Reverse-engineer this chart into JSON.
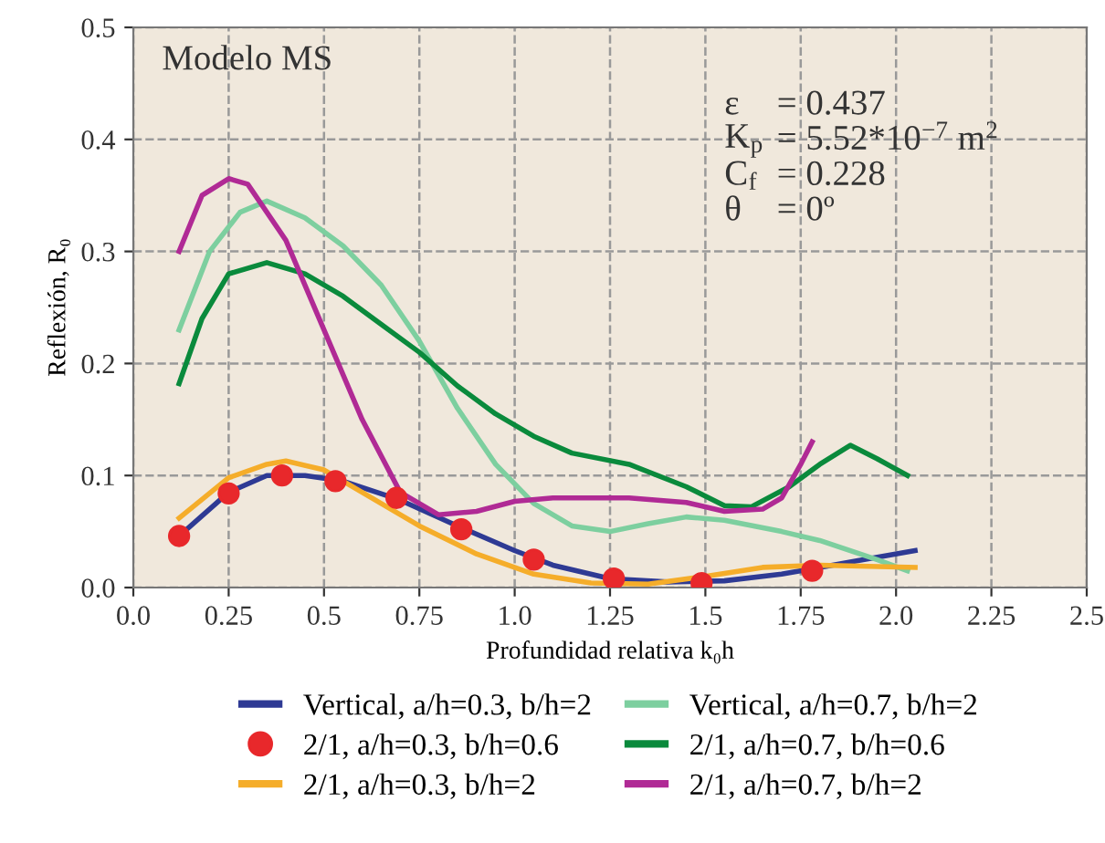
{
  "chart_data": {
    "type": "line",
    "xlabel": "Profundidad relativa k₀h",
    "ylabel": "Reflexión, R₀",
    "annotations": [
      "Modelo MS",
      "ε",
      "= 0.437",
      "K$_{p}$",
      "= 5.52*10$^{−7}$ m$^{2}$",
      "C$_{f}$",
      "= 0.228",
      "θ",
      "= 0º"
    ],
    "xlim": [
      0.0,
      2.5
    ],
    "xticks": [
      {
        "value": 0,
        "label": "0.0"
      },
      0.25,
      0.5,
      0.75,
      {
        "value": 1,
        "label": "1.0"
      },
      1.25,
      1.5,
      1.75,
      {
        "value": 2,
        "label": "2.0"
      },
      2.25,
      2.5
    ],
    "ylim": [
      0.0,
      0.5
    ],
    "yticks": [
      {
        "value": 0,
        "label": "0.0"
      },
      0.1,
      0.2,
      0.3,
      0.4,
      0.5
    ],
    "grid": true,
    "legend": "bottom",
    "line_style": "solid",
    "series": [
      {
        "name": "Vertical, a/h=0.3, b/h=2",
        "color": "#2e3a94",
        "x": [
          0.12,
          0.25,
          0.35,
          0.45,
          0.55,
          0.7,
          0.85,
          1.0,
          1.1,
          1.25,
          1.4,
          1.55,
          1.7,
          1.8,
          1.9,
          2.05
        ],
        "values": [
          0.046,
          0.085,
          0.1,
          0.1,
          0.095,
          0.078,
          0.055,
          0.033,
          0.02,
          0.008,
          0.005,
          0.006,
          0.012,
          0.018,
          0.024,
          0.033
        ]
      },
      {
        "name": "Vertical, a/h=0.7, b/h=2",
        "color": "#7dcf9f",
        "x": [
          0.12,
          0.2,
          0.28,
          0.35,
          0.45,
          0.55,
          0.65,
          0.75,
          0.85,
          0.95,
          1.05,
          1.15,
          1.25,
          1.35,
          1.45,
          1.55,
          1.7,
          1.8,
          1.95,
          2.03
        ],
        "values": [
          0.23,
          0.3,
          0.335,
          0.345,
          0.33,
          0.305,
          0.27,
          0.22,
          0.16,
          0.11,
          0.075,
          0.055,
          0.05,
          0.057,
          0.063,
          0.06,
          0.05,
          0.042,
          0.025,
          0.015
        ]
      },
      {
        "name": "2/1, a/h=0.3, b/h=0.6",
        "type": "scatter",
        "marker": "circle",
        "color": "#e8282b",
        "x": [
          0.12,
          0.25,
          0.39,
          0.53,
          0.69,
          0.86,
          1.05,
          1.26,
          1.49,
          1.78
        ],
        "values": [
          0.046,
          0.084,
          0.1,
          0.095,
          0.08,
          0.052,
          0.025,
          0.008,
          0.004,
          0.015
        ]
      },
      {
        "name": "2/1, a/h=0.7, b/h=0.6",
        "color": "#0a8a3c",
        "x": [
          0.12,
          0.18,
          0.25,
          0.35,
          0.45,
          0.55,
          0.65,
          0.75,
          0.85,
          0.95,
          1.05,
          1.15,
          1.3,
          1.45,
          1.55,
          1.62,
          1.72,
          1.8,
          1.88,
          1.95,
          2.03
        ],
        "values": [
          0.182,
          0.24,
          0.28,
          0.29,
          0.28,
          0.26,
          0.235,
          0.21,
          0.18,
          0.155,
          0.135,
          0.12,
          0.11,
          0.09,
          0.073,
          0.072,
          0.09,
          0.11,
          0.127,
          0.115,
          0.1
        ]
      },
      {
        "name": "2/1, a/h=0.3, b/h=2",
        "color": "#f5ad2a",
        "x": [
          0.12,
          0.25,
          0.35,
          0.4,
          0.5,
          0.6,
          0.75,
          0.9,
          1.05,
          1.2,
          1.35,
          1.5,
          1.65,
          1.8,
          2.05
        ],
        "values": [
          0.062,
          0.098,
          0.11,
          0.113,
          0.105,
          0.085,
          0.055,
          0.03,
          0.012,
          0.004,
          0.003,
          0.01,
          0.018,
          0.02,
          0.018
        ]
      },
      {
        "name": "2/1, a/h=0.7, b/h=2",
        "color": "#b02a95",
        "x": [
          0.12,
          0.18,
          0.25,
          0.3,
          0.4,
          0.5,
          0.6,
          0.7,
          0.8,
          0.9,
          1.0,
          1.1,
          1.3,
          1.45,
          1.55,
          1.65,
          1.7,
          1.75,
          1.78
        ],
        "values": [
          0.3,
          0.35,
          0.365,
          0.36,
          0.31,
          0.23,
          0.15,
          0.085,
          0.065,
          0.068,
          0.077,
          0.08,
          0.08,
          0.076,
          0.068,
          0.07,
          0.08,
          0.11,
          0.13
        ]
      }
    ]
  }
}
